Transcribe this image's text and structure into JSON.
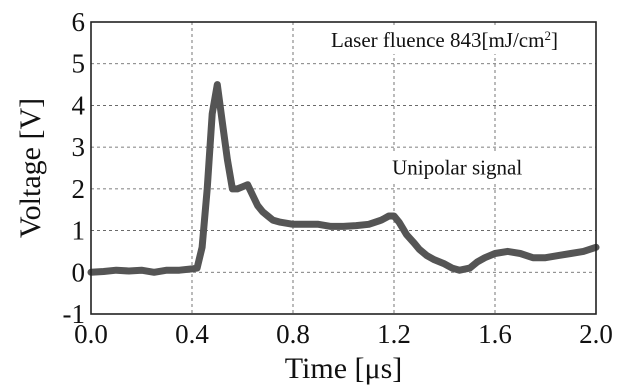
{
  "chart_data": {
    "type": "line",
    "xlabel": "Time [μs]",
    "ylabel": "Voltage [V]",
    "xlim": [
      0.0,
      2.0
    ],
    "ylim": [
      -1,
      6
    ],
    "x_ticks": [
      "0.0",
      "0.4",
      "0.8",
      "1.2",
      "1.6",
      "2.0"
    ],
    "y_ticks": [
      "-1",
      "0",
      "1",
      "2",
      "3",
      "4",
      "5",
      "6"
    ],
    "grid": true,
    "line_color": "#555555",
    "annotations": [
      {
        "text": "Laser fluence 843[mJ/cm",
        "sup": "2",
        "tail": "]",
        "x": 1.4,
        "y": 5.4
      },
      {
        "text": "Unipolar signal",
        "x": 1.45,
        "y": 2.35
      }
    ],
    "series": [
      {
        "x": [
          0.0,
          0.05,
          0.1,
          0.15,
          0.2,
          0.25,
          0.3,
          0.35,
          0.4,
          0.42,
          0.44,
          0.46,
          0.48,
          0.5,
          0.52,
          0.54,
          0.56,
          0.58,
          0.6,
          0.62,
          0.64,
          0.66,
          0.68,
          0.7,
          0.72,
          0.75,
          0.8,
          0.85,
          0.9,
          0.95,
          1.0,
          1.05,
          1.1,
          1.15,
          1.18,
          1.2,
          1.22,
          1.25,
          1.28,
          1.3,
          1.33,
          1.36,
          1.4,
          1.43,
          1.46,
          1.5,
          1.53,
          1.56,
          1.6,
          1.65,
          1.7,
          1.75,
          1.8,
          1.85,
          1.9,
          1.95,
          2.0
        ],
        "values": [
          0.0,
          0.02,
          0.05,
          0.03,
          0.05,
          0.0,
          0.05,
          0.05,
          0.08,
          0.1,
          0.6,
          2.0,
          3.8,
          4.5,
          3.6,
          2.7,
          2.0,
          2.0,
          2.05,
          2.1,
          1.85,
          1.6,
          1.45,
          1.35,
          1.25,
          1.2,
          1.15,
          1.15,
          1.15,
          1.1,
          1.1,
          1.12,
          1.15,
          1.25,
          1.35,
          1.35,
          1.2,
          0.9,
          0.7,
          0.55,
          0.4,
          0.3,
          0.2,
          0.1,
          0.05,
          0.1,
          0.25,
          0.35,
          0.45,
          0.5,
          0.45,
          0.35,
          0.35,
          0.4,
          0.45,
          0.5,
          0.6
        ]
      }
    ]
  }
}
